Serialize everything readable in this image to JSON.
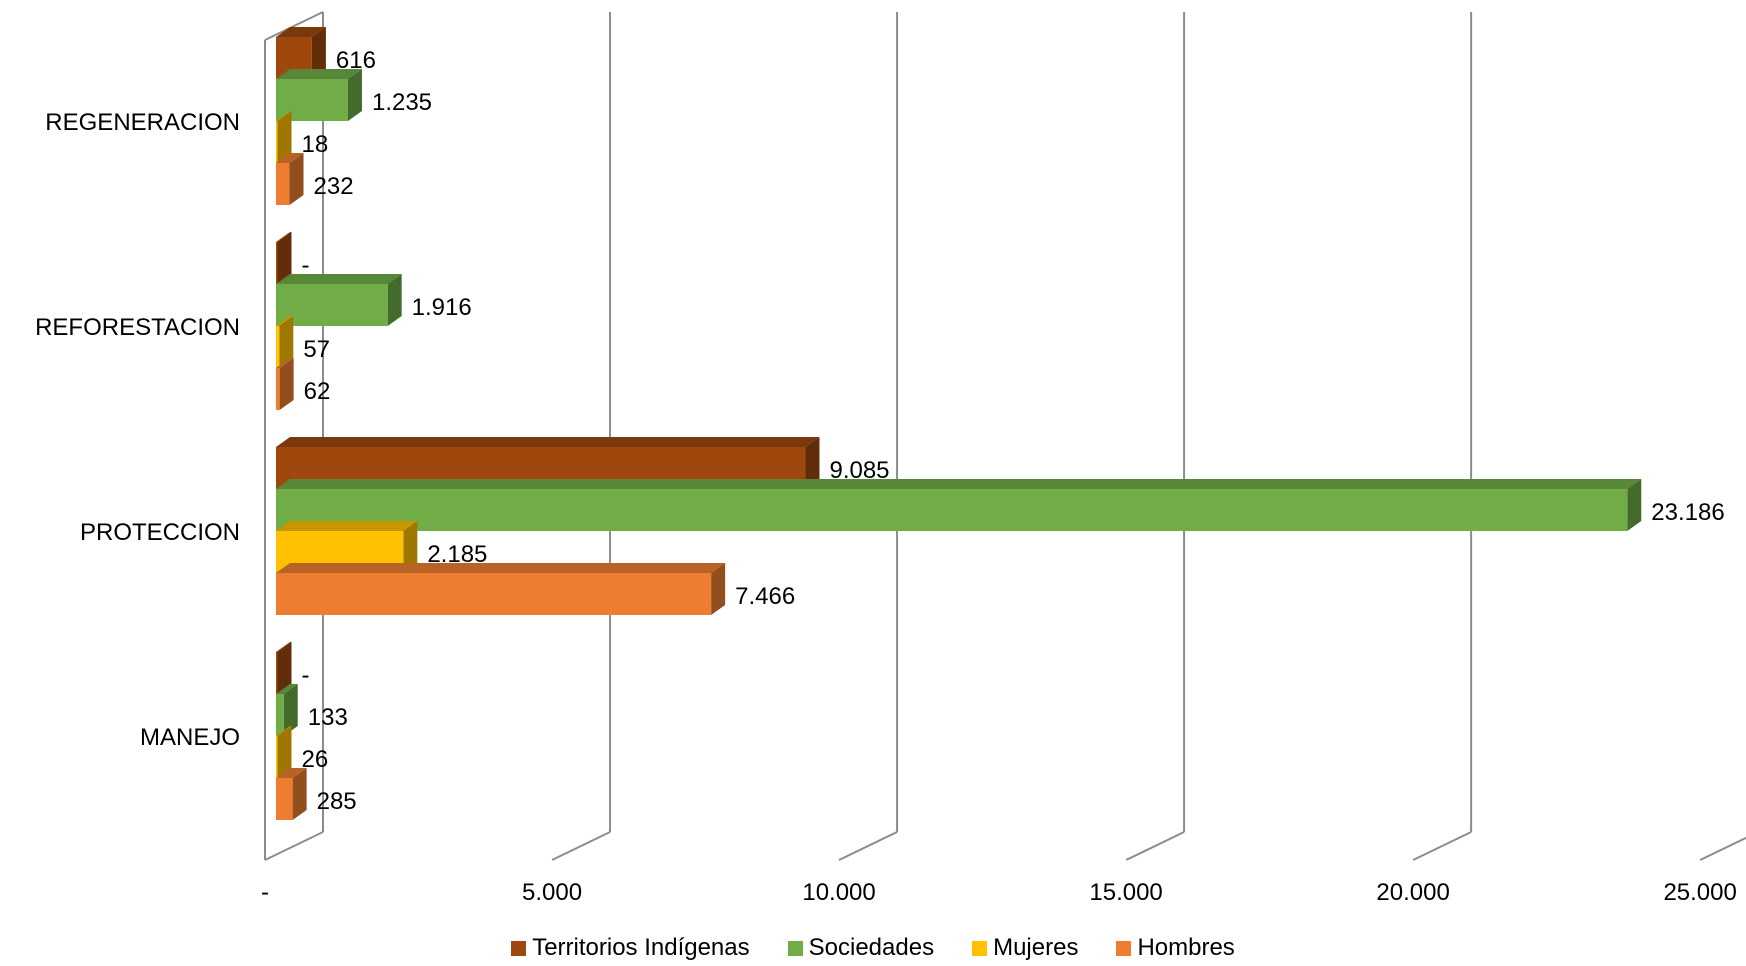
{
  "chart_data": {
    "type": "bar",
    "orientation": "horizontal",
    "three_d": true,
    "categories": [
      "MANEJO",
      "PROTECCION",
      "REFORESTACION",
      "REGENERACION"
    ],
    "series": [
      {
        "name": "Territorios Indígenas",
        "color": "#9E480E",
        "values": [
          0,
          9085,
          0,
          616
        ],
        "labels": [
          "-",
          "9.085",
          "-",
          "616"
        ]
      },
      {
        "name": "Sociedades",
        "color": "#70AD47",
        "values": [
          133,
          23186,
          1916,
          1235
        ],
        "labels": [
          "133",
          "23.186",
          "1.916",
          "1.235"
        ]
      },
      {
        "name": "Mujeres",
        "color": "#FFC000",
        "values": [
          26,
          2185,
          57,
          18
        ],
        "labels": [
          "26",
          "2.185",
          "57",
          "18"
        ]
      },
      {
        "name": "Hombres",
        "color": "#ED7D31",
        "values": [
          285,
          7466,
          62,
          232
        ],
        "labels": [
          "285",
          "7.466",
          "62",
          "232"
        ]
      }
    ],
    "xlim": [
      0,
      25000
    ],
    "x_ticks": [
      0,
      5000,
      10000,
      15000,
      20000,
      25000
    ],
    "x_tick_labels": [
      "-",
      "5.000",
      "10.000",
      "15.000",
      "20.000",
      "25.000"
    ],
    "grid": true,
    "legend_position": "bottom"
  }
}
